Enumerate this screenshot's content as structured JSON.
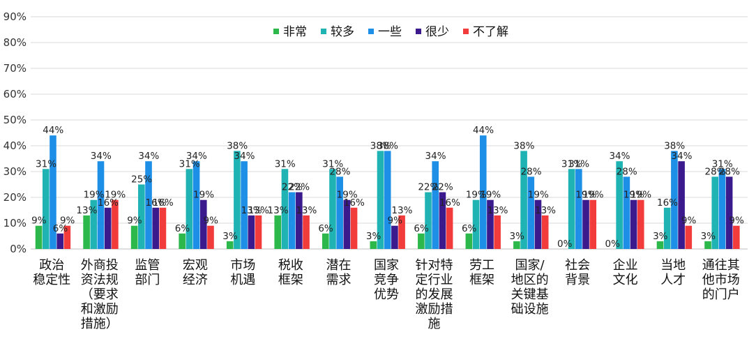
{
  "chart_data": {
    "type": "bar",
    "title": "",
    "xlabel": "",
    "ylabel": "",
    "ylim": [
      0,
      90
    ],
    "yticks": [
      "0%",
      "10%",
      "20%",
      "30%",
      "40%",
      "50%",
      "60%",
      "70%",
      "80%",
      "90%"
    ],
    "grid": true,
    "legend_position": "top",
    "categories": [
      "政治\n稳定性",
      "外商投\n资法规\n（要求\n和激励\n措施）",
      "监管\n部门",
      "宏观\n经济",
      "市场\n机遇",
      "税收\n框架",
      "潜在\n需求",
      "国家\n竞争\n优势",
      "针对特\n定行业\n的发展\n激励措\n施",
      "劳工\n框架",
      "国家/\n地区的\n关键基\n础设施",
      "社会\n背景",
      "企业\n文化",
      "当地\n人才",
      "通往其\n他市场\n的门户"
    ],
    "series": [
      {
        "name": "非常",
        "color": "#2db84b",
        "values": [
          9,
          13,
          9,
          6,
          3,
          13,
          6,
          3,
          6,
          6,
          3,
          0,
          0,
          3,
          3
        ]
      },
      {
        "name": "较多",
        "color": "#1fb3b3",
        "values": [
          31,
          19,
          25,
          31,
          38,
          31,
          31,
          38,
          22,
          19,
          38,
          31,
          34,
          16,
          28
        ]
      },
      {
        "name": "一些",
        "color": "#1e8fe6",
        "values": [
          44,
          34,
          34,
          34,
          34,
          22,
          28,
          38,
          34,
          44,
          28,
          31,
          28,
          38,
          31
        ]
      },
      {
        "name": "很少",
        "color": "#3a1a8c",
        "values": [
          6,
          16,
          16,
          19,
          13,
          22,
          19,
          9,
          22,
          19,
          19,
          19,
          19,
          34,
          28
        ]
      },
      {
        "name": "不了解",
        "color": "#f23c3c",
        "values": [
          9,
          19,
          16,
          9,
          13,
          13,
          16,
          13,
          16,
          13,
          13,
          19,
          19,
          9,
          9
        ]
      }
    ],
    "value_suffix": "%"
  }
}
